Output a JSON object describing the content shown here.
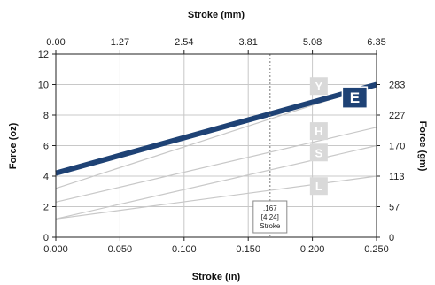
{
  "chart_data": {
    "type": "line",
    "xlabel": "Stroke (in)",
    "x2label": "Stroke (mm)",
    "ylabel": "Force (oz)",
    "y2label": "Force (gm)",
    "xlim": [
      0,
      0.25
    ],
    "ylim": [
      0,
      12
    ],
    "x_ticks": [
      0,
      0.05,
      0.1,
      0.15,
      0.2,
      0.25
    ],
    "x_tick_labels": [
      "0.000",
      "0.050",
      "0.100",
      "0.150",
      "0.200",
      "0.250"
    ],
    "x2_tick_labels": [
      "0.00",
      "1.27",
      "2.54",
      "3.81",
      "5.08",
      "6.35"
    ],
    "y_ticks": [
      0,
      2,
      4,
      6,
      8,
      10,
      12
    ],
    "y_tick_labels": [
      "0",
      "2",
      "4",
      "6",
      "8",
      "10",
      "12"
    ],
    "y2_ticks": [
      0,
      2,
      4,
      6,
      8,
      10
    ],
    "y2_tick_labels": [
      "0",
      "57",
      "113",
      "170",
      "227",
      "283"
    ],
    "grid": true,
    "series": [
      {
        "name": "E",
        "x": [
          0,
          0.25
        ],
        "y": [
          4.2,
          10.0
        ],
        "color": "#1e4275",
        "highlight": true,
        "label_at": [
          0.233,
          9.15
        ]
      },
      {
        "name": "Y",
        "x": [
          0,
          0.25
        ],
        "y": [
          3.2,
          10.0
        ],
        "color": "#c8c8c8",
        "highlight": false,
        "label_at": [
          0.205,
          9.9
        ]
      },
      {
        "name": "H",
        "x": [
          0,
          0.25
        ],
        "y": [
          2.3,
          7.2
        ],
        "color": "#c8c8c8",
        "highlight": false,
        "label_at": [
          0.205,
          6.95
        ]
      },
      {
        "name": "S",
        "x": [
          0,
          0.25
        ],
        "y": [
          1.2,
          6.0
        ],
        "color": "#c8c8c8",
        "highlight": false,
        "label_at": [
          0.205,
          5.55
        ]
      },
      {
        "name": "L",
        "x": [
          0,
          0.25
        ],
        "y": [
          1.2,
          4.0
        ],
        "color": "#c8c8c8",
        "highlight": false,
        "label_at": [
          0.205,
          3.35
        ]
      }
    ],
    "annotation": {
      "x": 0.167,
      "lines": [
        ".167",
        "[4.24]",
        "Stroke"
      ]
    }
  }
}
